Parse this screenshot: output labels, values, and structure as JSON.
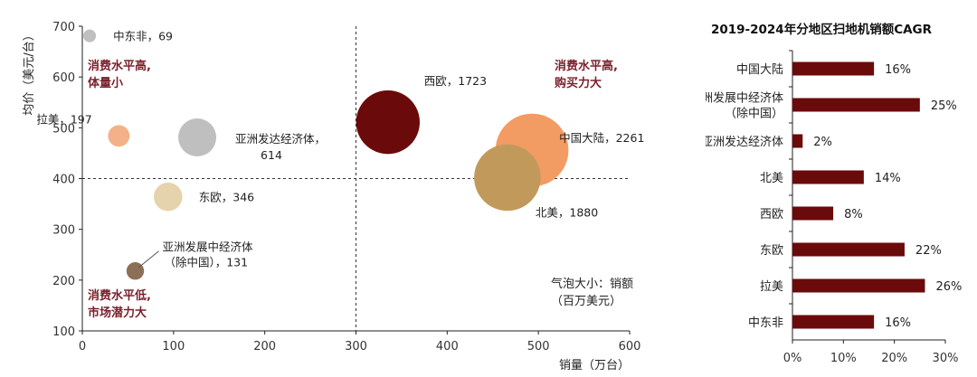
{
  "chart_data": [
    {
      "type": "scatter",
      "subtype": "bubble",
      "title": "",
      "xlabel": "销量（万台）",
      "ylabel": "均价（美元/台）",
      "xlim": [
        0,
        600
      ],
      "ylim": [
        100,
        700
      ],
      "xticks": [
        0,
        100,
        200,
        300,
        400,
        500,
        600
      ],
      "yticks": [
        100,
        200,
        300,
        400,
        500,
        600,
        700
      ],
      "reference_lines": {
        "x": 300,
        "y": 400
      },
      "points": [
        {
          "name": "中东非",
          "label": "中东非，69",
          "x": 8,
          "y": 681,
          "size": 69,
          "color": "#bfbfbf"
        },
        {
          "name": "拉美",
          "label": "拉美，197",
          "x": 40,
          "y": 484,
          "size": 197,
          "color": "#f4b088"
        },
        {
          "name": "亚洲发达经济体",
          "label": "亚洲发达经济体，614",
          "label_lines": [
            "亚洲发达经济体，",
            "614"
          ],
          "x": 126,
          "y": 481,
          "size": 614,
          "color": "#bfbfbf"
        },
        {
          "name": "东欧",
          "label": "东欧，346",
          "x": 94,
          "y": 364,
          "size": 346,
          "color": "#e5d3ad"
        },
        {
          "name": "亚洲发展中经济体（除中国）",
          "label": "亚洲发展中经济体（除中国），131",
          "label_lines": [
            "亚洲发展中经济体",
            "（除中国），131"
          ],
          "x": 58,
          "y": 218,
          "size": 131,
          "color": "#8c7056"
        },
        {
          "name": "西欧",
          "label": "西欧，1723",
          "x": 335,
          "y": 511,
          "size": 1723,
          "color": "#6b0a0a"
        },
        {
          "name": "中国大陆",
          "label": "中国大陆，2261",
          "x": 493,
          "y": 456,
          "size": 2261,
          "color": "#f29b63"
        },
        {
          "name": "北美",
          "label": "北美，1880",
          "x": 466,
          "y": 402,
          "size": 1880,
          "color": "#c19a5b"
        }
      ],
      "annotations": {
        "quad_top_left": [
          "消费水平高,",
          "体量小"
        ],
        "quad_top_right": [
          "消费水平高,",
          "购买力大"
        ],
        "quad_bottom_left": [
          "消费水平低,",
          "市场潜力大"
        ],
        "size_note": [
          "气泡大小：销额",
          "（百万美元）"
        ]
      }
    },
    {
      "type": "bar",
      "orientation": "horizontal",
      "title": "2019-2024年分地区扫地机销额CAGR",
      "categories": [
        "中国大陆",
        "亚洲发展中经济体（除中国）",
        "亚洲发达经济体",
        "北美",
        "西欧",
        "东欧",
        "拉美",
        "中东非"
      ],
      "category_lines": [
        [
          "中国大陆"
        ],
        [
          "亚洲发展中经济体",
          "（除中国）"
        ],
        [
          "亚洲发达经济体"
        ],
        [
          "北美"
        ],
        [
          "西欧"
        ],
        [
          "东欧"
        ],
        [
          "拉美"
        ],
        [
          "中东非"
        ]
      ],
      "values": [
        16,
        25,
        2,
        14,
        8,
        22,
        26,
        16
      ],
      "value_labels": [
        "16%",
        "25%",
        "2%",
        "14%",
        "8%",
        "22%",
        "26%",
        "16%"
      ],
      "xlim": [
        0,
        30
      ],
      "xticks": [
        "0%",
        "10%",
        "20%",
        "30%"
      ],
      "color": "#6b0a0a"
    }
  ]
}
